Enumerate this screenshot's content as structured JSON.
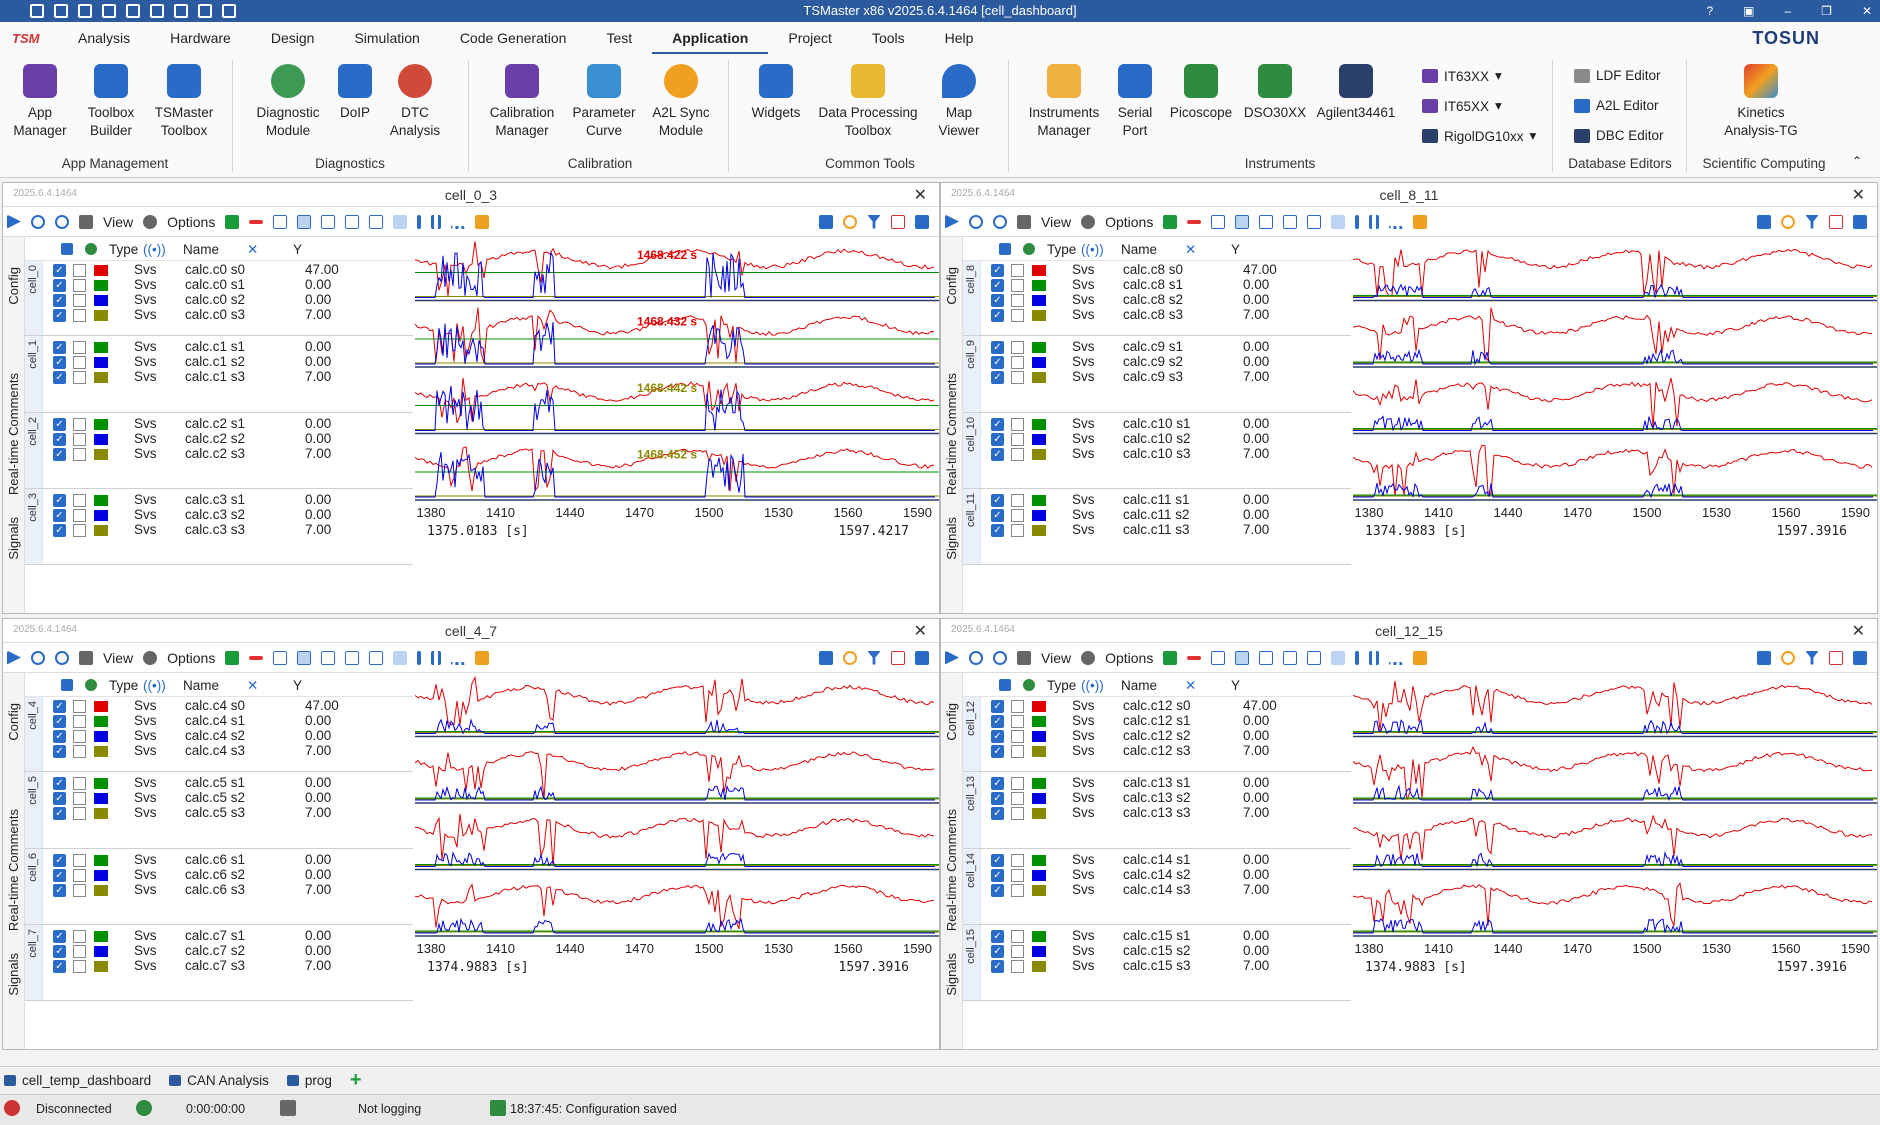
{
  "window": {
    "title": "TSMaster x86 v2025.6.4.1464 [cell_dashboard]",
    "controls": [
      "?",
      "▣",
      "–",
      "❐",
      "✕"
    ]
  },
  "menu": {
    "logo": "TSM",
    "items": [
      "Analysis",
      "Hardware",
      "Design",
      "Simulation",
      "Code Generation",
      "Test",
      "Application",
      "Project",
      "Tools",
      "Help"
    ],
    "active": "Application",
    "brand": "TOSUN"
  },
  "ribbon": {
    "app_manager": "App\nManager",
    "toolbox_builder": "Toolbox\nBuilder",
    "tsmaster_toolbox": "TSMaster\nToolbox",
    "group_app": "App Management",
    "diagnostic_module": "Diagnostic\nModule",
    "doip": "DoIP",
    "dtc_analysis": "DTC\nAnalysis",
    "group_diag": "Diagnostics",
    "calibration_manager": "Calibration\nManager",
    "parameter_curve": "Parameter\nCurve",
    "a2l_sync": "A2L Sync\nModule",
    "group_cal": "Calibration",
    "widgets": "Widgets",
    "data_processing": "Data Processing\nToolbox",
    "map_viewer": "Map\nViewer",
    "group_common": "Common Tools",
    "instruments_manager": "Instruments\nManager",
    "serial_port": "Serial\nPort",
    "picoscope": "Picoscope",
    "dso30xx": "DSO30XX",
    "agilent": "Agilent34461",
    "it63xx": "IT63XX",
    "it65xx": "IT65XX",
    "rigol": "RigolDG10xx",
    "group_instr": "Instruments",
    "ldf_editor": "LDF Editor",
    "a2l_editor": "A2L Editor",
    "dbc_editor": "DBC Editor",
    "group_db": "Database Editors",
    "kinetics": "Kinetics\nAnalysis-TG",
    "group_sci": "Scientific Computing"
  },
  "panel_common": {
    "version": "2025.6.4.1464",
    "view_label": "View",
    "options_label": "Options",
    "col_type": "Type",
    "col_name": "Name",
    "col_y": "Y",
    "vtab_config": "Config",
    "vtab_comments": "Real-time Comments",
    "vtab_signals": "Signals",
    "series_colors": [
      "#e00000",
      "#009000",
      "#0000e0",
      "#8a8a00"
    ]
  },
  "panels": [
    {
      "title": "cell_0_3",
      "cells": [
        0,
        1,
        2,
        3
      ],
      "xticks": [
        "1380",
        "1410",
        "1440",
        "1470",
        "1500",
        "1530",
        "1560",
        "1590"
      ],
      "x_lo": "1375.0183 [s]",
      "x_hi": "1597.4217",
      "cursor": [
        "1468.422 s",
        "1468.432 s",
        "1468.442 s",
        "1468.452 s"
      ]
    },
    {
      "title": "cell_8_11",
      "cells": [
        8,
        9,
        10,
        11
      ],
      "xticks": [
        "1380",
        "1410",
        "1440",
        "1470",
        "1500",
        "1530",
        "1560",
        "1590"
      ],
      "x_lo": "1374.9883 [s]",
      "x_hi": "1597.3916",
      "cursor": []
    },
    {
      "title": "cell_4_7",
      "cells": [
        4,
        5,
        6,
        7
      ],
      "xticks": [
        "1380",
        "1410",
        "1440",
        "1470",
        "1500",
        "1530",
        "1560",
        "1590"
      ],
      "x_lo": "1374.9883 [s]",
      "x_hi": "1597.3916",
      "cursor": []
    },
    {
      "title": "cell_12_15",
      "cells": [
        12,
        13,
        14,
        15
      ],
      "xticks": [
        "1380",
        "1410",
        "1440",
        "1470",
        "1500",
        "1530",
        "1560",
        "1590"
      ],
      "x_lo": "1374.9883 [s]",
      "x_hi": "1597.3916",
      "cursor": []
    }
  ],
  "signal_row_template": {
    "type": "Svs",
    "values": [
      "47.00",
      "0.00",
      "0.00",
      "7.00"
    ]
  },
  "doc_tabs": [
    "cell_temp_dashboard",
    "CAN Analysis",
    "prog"
  ],
  "status": {
    "connection": "Disconnected",
    "time": "0:00:00:00",
    "logging": "Not logging",
    "message": "18:37:45: Configuration saved"
  }
}
